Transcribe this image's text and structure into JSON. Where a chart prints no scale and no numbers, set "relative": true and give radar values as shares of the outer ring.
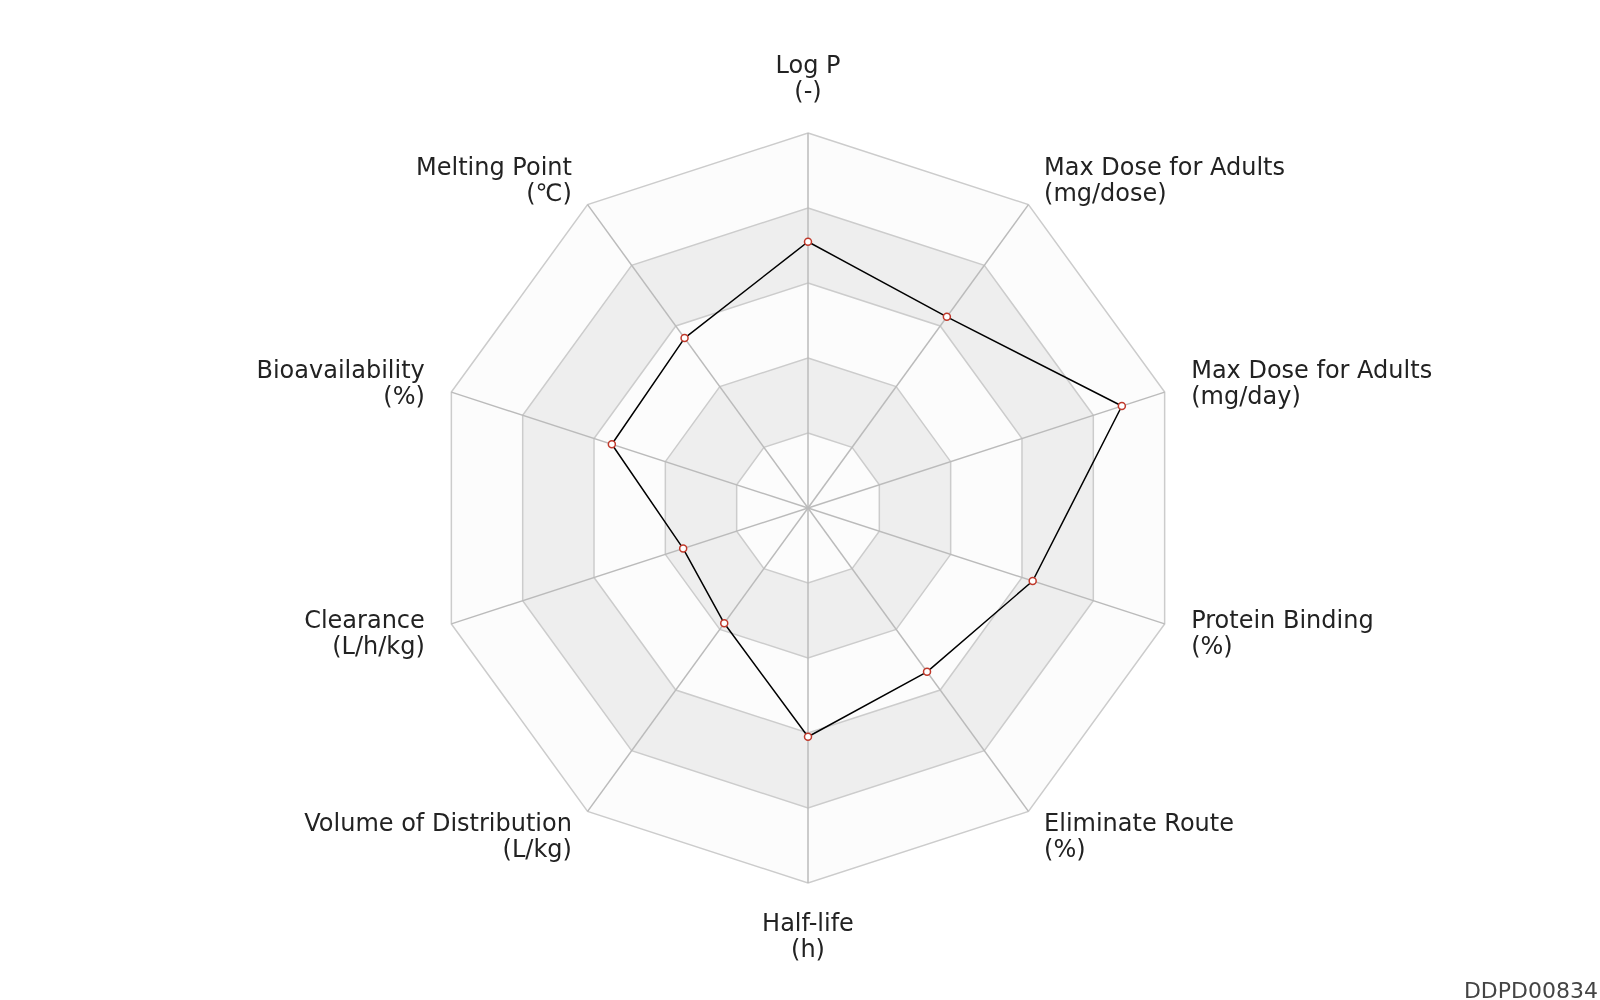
{
  "chart_data": {
    "type": "radar",
    "relative": true,
    "grid": true,
    "marker": "circle",
    "categories": [
      "Log P\n(-)",
      "Max Dose for Adults\n(mg/dose)",
      "Max Dose for Adults\n(mg/day)",
      "Protein Binding\n(%)",
      "Eliminate Route\n(%)",
      "Half-life\n(h)",
      "Volume of Distribution\n(L/kg)",
      "Clearance\n(L/h/kg)",
      "Bioavailability\n(%)",
      "Melting Point\n(℃)"
    ],
    "series": [
      {
        "color": "#000000",
        "values": [
          0.71,
          0.63,
          0.88,
          0.63,
          0.54,
          0.61,
          0.38,
          0.35,
          0.55,
          0.56
        ]
      }
    ],
    "annotations": [
      "DDPD00834"
    ]
  }
}
